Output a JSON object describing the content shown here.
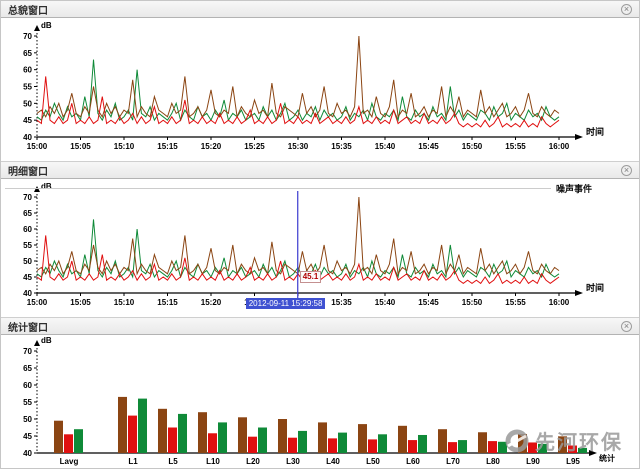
{
  "panels": {
    "overview": {
      "title": "总貌窗口"
    },
    "detail": {
      "title": "明细窗口",
      "event_label": "噪声事件"
    },
    "stats": {
      "title": "统计窗口"
    }
  },
  "icons": {
    "close": "×"
  },
  "watermark": {
    "text": "先河环保"
  },
  "colors": {
    "brown": "#8B4513",
    "red": "#e01010",
    "green": "#0f8a38",
    "cursor_blue": "#3b3bcf",
    "highlight_bg": "#3f51d1"
  },
  "chart_data": [
    {
      "type": "line",
      "title": "总貌窗口",
      "xlabel": "时间",
      "ylabel": "dB",
      "ylim": [
        40,
        70
      ],
      "yticks": [
        40,
        45,
        50,
        55,
        60,
        65,
        70
      ],
      "xticks": [
        "15:00",
        "15:05",
        "15:10",
        "15:15",
        "15:20",
        "15:25",
        "15:30",
        "15:35",
        "15:40",
        "15:45",
        "15:50",
        "15:55",
        "16:00"
      ],
      "series": [
        {
          "name": "channel-green",
          "color": "#0f8a38",
          "values": [
            46,
            45,
            48,
            46,
            50,
            47,
            45,
            49,
            46,
            47,
            45,
            52,
            46,
            63,
            47,
            45,
            48,
            46,
            50,
            45,
            46,
            48,
            45,
            60,
            47,
            46,
            49,
            45,
            47,
            46,
            45,
            47,
            50,
            45,
            48,
            46,
            45,
            49,
            46,
            47,
            45,
            48,
            46,
            51,
            45,
            47,
            46,
            48,
            45,
            46,
            47,
            45,
            49,
            46,
            48,
            45,
            47,
            50,
            45,
            46,
            48,
            45,
            47,
            46,
            49,
            45,
            48,
            46,
            47,
            45,
            46,
            49,
            45,
            47,
            46,
            48,
            45,
            50,
            46,
            45,
            47,
            46,
            48,
            45,
            52,
            46,
            45,
            48,
            46,
            47,
            45,
            49,
            46,
            47,
            45,
            55,
            46,
            48,
            45,
            47,
            46,
            45,
            48,
            47,
            45,
            49,
            46,
            47,
            50,
            45,
            47,
            46,
            45,
            48,
            46,
            47,
            45,
            49,
            46,
            45,
            46
          ]
        },
        {
          "name": "channel-brown",
          "color": "#8B4513",
          "values": [
            47,
            48,
            46,
            49,
            47,
            50,
            46,
            48,
            53,
            47,
            46,
            49,
            47,
            55,
            48,
            46,
            50,
            47,
            49,
            46,
            48,
            47,
            57,
            46,
            49,
            47,
            46,
            52,
            48,
            47,
            46,
            50,
            47,
            48,
            58,
            46,
            47,
            49,
            46,
            48,
            54,
            47,
            46,
            48,
            47,
            55,
            46,
            49,
            47,
            46,
            51,
            47,
            48,
            46,
            56,
            47,
            46,
            49,
            48,
            47,
            46,
            53,
            47,
            49,
            46,
            48,
            55,
            47,
            46,
            50,
            47,
            48,
            46,
            49,
            70,
            47,
            48,
            46,
            52,
            47,
            46,
            49,
            57,
            46,
            48,
            47,
            53,
            46,
            47,
            49,
            46,
            48,
            47,
            55,
            46,
            49,
            47,
            52,
            46,
            48,
            47,
            46,
            54,
            47,
            49,
            46,
            48,
            50,
            46,
            47,
            49,
            46,
            48,
            53,
            47,
            46,
            49,
            47,
            46,
            48,
            47
          ]
        },
        {
          "name": "channel-red",
          "color": "#e01010",
          "values": [
            45,
            44,
            58,
            45,
            44,
            46,
            44,
            45,
            50,
            44,
            45,
            44,
            46,
            44,
            45,
            52,
            44,
            45,
            44,
            46,
            44,
            45,
            47,
            44,
            46,
            44,
            45,
            49,
            44,
            45,
            44,
            46,
            44,
            45,
            51,
            44,
            45,
            44,
            46,
            44,
            45,
            44,
            47,
            44,
            45,
            44,
            46,
            44,
            45,
            48,
            44,
            45,
            44,
            46,
            44,
            45,
            50,
            44,
            45,
            44,
            46,
            44,
            45,
            44,
            47,
            44,
            45,
            46,
            44,
            45,
            44,
            46,
            44,
            45,
            49,
            44,
            45,
            44,
            46,
            44,
            45,
            44,
            48,
            44,
            45,
            46,
            44,
            45,
            44,
            47,
            44,
            45,
            44,
            46,
            44,
            45,
            47,
            44,
            43,
            44,
            43,
            44,
            43,
            45,
            43,
            44,
            46,
            43,
            44,
            43,
            44,
            43,
            45,
            43,
            44,
            43,
            46,
            44,
            43,
            44,
            45
          ]
        }
      ]
    },
    {
      "type": "line",
      "title": "明细窗口",
      "xlabel": "时间",
      "ylabel": "dB",
      "ylim": [
        40,
        70
      ],
      "yticks": [
        40,
        45,
        50,
        55,
        60,
        65,
        70
      ],
      "xticks": [
        "15:00",
        "15:05",
        "15:10",
        "15:15",
        "15:20",
        "15:25",
        "15:30",
        "15:35",
        "15:40",
        "15:45",
        "15:50",
        "15:55",
        "16:00"
      ],
      "series": "same_as_chart_0",
      "cursor": {
        "x_fraction": 0.4995,
        "value": "45.1",
        "datetime": "2012-09-11 15:29:58"
      }
    },
    {
      "type": "bar",
      "title": "统计窗口",
      "xlabel": "统计",
      "ylabel": "dB",
      "ylim": [
        40,
        70
      ],
      "yticks": [
        40,
        45,
        50,
        55,
        60,
        65,
        70
      ],
      "categories": [
        "Lavg",
        "L1",
        "L5",
        "L10",
        "L20",
        "L30",
        "L40",
        "L50",
        "L60",
        "L70",
        "L80",
        "L90",
        "L95"
      ],
      "series": [
        {
          "name": "stat-brown",
          "color": "#8B4513",
          "values": [
            49.5,
            56.5,
            53,
            52,
            50.5,
            50,
            49,
            48.5,
            48,
            47,
            46.1,
            45.6,
            44.9
          ]
        },
        {
          "name": "stat-red",
          "color": "#e01010",
          "values": [
            45.5,
            51,
            47.5,
            45.8,
            44.8,
            44.5,
            44.3,
            44,
            43.8,
            43.2,
            43.5,
            43.1,
            42.2
          ]
        },
        {
          "name": "stat-green",
          "color": "#0f8a38",
          "values": [
            47,
            56,
            51.5,
            49,
            47.5,
            46.5,
            46,
            45.5,
            45.3,
            43.8,
            43.3,
            42.7,
            41.5
          ]
        }
      ]
    }
  ]
}
